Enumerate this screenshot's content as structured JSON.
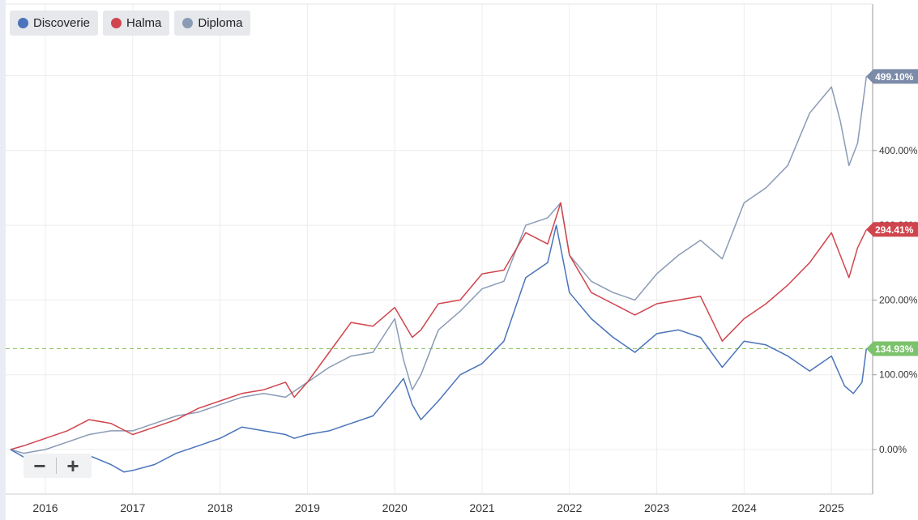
{
  "legend": [
    {
      "label": "Discoverie",
      "color": "#4a74bb"
    },
    {
      "label": "Halma",
      "color": "#d0454d"
    },
    {
      "label": "Diploma",
      "color": "#8a9bb6"
    }
  ],
  "zoom": {
    "minus_label": "−",
    "plus_label": "+"
  },
  "chart_data": {
    "type": "line",
    "xlabel": "",
    "ylabel": "",
    "x_ticks": [
      "2016",
      "2017",
      "2018",
      "2019",
      "2020",
      "2021",
      "2022",
      "2023",
      "2024",
      "2025"
    ],
    "y_ticks": [
      "0.00%",
      "100.00%",
      "200.00%",
      "300.00%",
      "400.00%"
    ],
    "ylim": [
      -60,
      590
    ],
    "xlim": [
      2015.6,
      2025.5
    ],
    "grid": true,
    "legend_position": "top-left",
    "reference_line": {
      "value": 134.93,
      "color": "#8fc76a"
    },
    "end_labels": [
      {
        "text": "499.10%",
        "value": 499.1,
        "color": "#7b8ba8"
      },
      {
        "text": "294.41%",
        "value": 294.41,
        "color": "#d0454d"
      },
      {
        "text": "134.93%",
        "value": 134.93,
        "color": "#7cc26b"
      }
    ],
    "series": [
      {
        "name": "Discoverie",
        "color": "#4a74bb",
        "x": [
          2015.6,
          2015.75,
          2016.0,
          2016.25,
          2016.5,
          2016.75,
          2016.9,
          2017.0,
          2017.25,
          2017.5,
          2017.75,
          2018.0,
          2018.25,
          2018.5,
          2018.75,
          2018.85,
          2019.0,
          2019.25,
          2019.5,
          2019.75,
          2020.0,
          2020.1,
          2020.2,
          2020.3,
          2020.5,
          2020.75,
          2021.0,
          2021.25,
          2021.5,
          2021.75,
          2021.85,
          2022.0,
          2022.25,
          2022.5,
          2022.75,
          2023.0,
          2023.25,
          2023.5,
          2023.75,
          2024.0,
          2024.25,
          2024.5,
          2024.75,
          2025.0,
          2025.15,
          2025.25,
          2025.35,
          2025.4
        ],
        "y": [
          0,
          -10,
          -20,
          -15,
          -8,
          -20,
          -30,
          -28,
          -20,
          -5,
          5,
          15,
          30,
          25,
          20,
          15,
          20,
          25,
          35,
          45,
          80,
          95,
          60,
          40,
          65,
          100,
          115,
          145,
          230,
          250,
          300,
          210,
          175,
          150,
          130,
          155,
          160,
          150,
          110,
          145,
          140,
          125,
          105,
          125,
          85,
          75,
          90,
          135
        ]
      },
      {
        "name": "Halma",
        "color": "#d0454d",
        "x": [
          2015.6,
          2015.75,
          2016.0,
          2016.25,
          2016.5,
          2016.75,
          2017.0,
          2017.25,
          2017.5,
          2017.75,
          2018.0,
          2018.25,
          2018.5,
          2018.75,
          2018.85,
          2019.0,
          2019.25,
          2019.5,
          2019.75,
          2020.0,
          2020.2,
          2020.3,
          2020.5,
          2020.75,
          2021.0,
          2021.25,
          2021.5,
          2021.75,
          2021.9,
          2022.0,
          2022.25,
          2022.5,
          2022.75,
          2023.0,
          2023.25,
          2023.5,
          2023.75,
          2024.0,
          2024.25,
          2024.5,
          2024.75,
          2025.0,
          2025.1,
          2025.2,
          2025.3,
          2025.4
        ],
        "y": [
          0,
          5,
          15,
          25,
          40,
          35,
          20,
          30,
          40,
          55,
          65,
          75,
          80,
          90,
          70,
          90,
          130,
          170,
          165,
          190,
          150,
          160,
          195,
          200,
          235,
          240,
          290,
          275,
          330,
          260,
          210,
          195,
          180,
          195,
          200,
          205,
          145,
          175,
          195,
          220,
          250,
          290,
          260,
          230,
          270,
          294
        ]
      },
      {
        "name": "Diploma",
        "color": "#8a9bb6",
        "x": [
          2015.6,
          2015.75,
          2016.0,
          2016.25,
          2016.5,
          2016.75,
          2017.0,
          2017.25,
          2017.5,
          2017.75,
          2018.0,
          2018.25,
          2018.5,
          2018.75,
          2019.0,
          2019.25,
          2019.5,
          2019.75,
          2020.0,
          2020.1,
          2020.2,
          2020.3,
          2020.5,
          2020.75,
          2021.0,
          2021.25,
          2021.5,
          2021.75,
          2021.9,
          2022.0,
          2022.25,
          2022.5,
          2022.75,
          2023.0,
          2023.25,
          2023.5,
          2023.75,
          2024.0,
          2024.25,
          2024.5,
          2024.75,
          2025.0,
          2025.1,
          2025.2,
          2025.3,
          2025.4
        ],
        "y": [
          0,
          -5,
          0,
          10,
          20,
          25,
          25,
          35,
          45,
          50,
          60,
          70,
          75,
          70,
          90,
          110,
          125,
          130,
          175,
          120,
          80,
          100,
          160,
          185,
          215,
          225,
          300,
          310,
          330,
          260,
          225,
          210,
          200,
          235,
          260,
          280,
          255,
          330,
          350,
          380,
          450,
          485,
          440,
          380,
          410,
          499
        ]
      }
    ]
  }
}
